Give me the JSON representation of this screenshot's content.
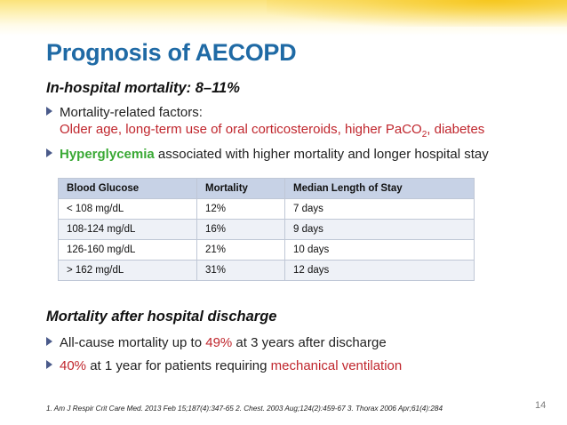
{
  "slide": {
    "title": "Prognosis of AECOPD",
    "section1": {
      "heading": "In-hospital mortality: 8–11%",
      "bullet1_label": "Mortality-related factors:",
      "bullet1_detail_pre": "Older age, long-term use of oral corticosteroids, higher PaCO",
      "bullet1_detail_sub": "2",
      "bullet1_detail_post": ", diabetes",
      "bullet2_highlight": "Hyperglycemia",
      "bullet2_rest": " associated with higher mortality and longer hospital stay"
    },
    "table": {
      "headers": [
        "Blood Glucose",
        "Mortality",
        "Median Length of Stay"
      ],
      "rows": [
        [
          "< 108 mg/dL",
          "12%",
          "7 days"
        ],
        [
          "108-124 mg/dL",
          "16%",
          "9 days"
        ],
        [
          "126-160 mg/dL",
          "21%",
          "10 days"
        ],
        [
          "> 162 mg/dL",
          "31%",
          "12 days"
        ]
      ]
    },
    "section2": {
      "heading": "Mortality after hospital discharge",
      "bullet1_pre": "All-cause mortality up to ",
      "bullet1_red": "49%",
      "bullet1_post": " at 3 years after discharge",
      "bullet2_red": "40%",
      "bullet2_mid": " at 1 year for patients requiring ",
      "bullet2_red2": "mechanical ventilation"
    },
    "footnote": "1. Am J Respir Crit Care Med. 2013 Feb 15;187(4):347-65  2. Chest. 2003 Aug;124(2):459-67  3. Thorax 2006 Apr;61(4):284",
    "page_number": "14"
  },
  "colors": {
    "title": "#1f6aa5",
    "highlight_red": "#c0262d",
    "highlight_green": "#3aa935",
    "table_header": "#c7d2e6"
  }
}
